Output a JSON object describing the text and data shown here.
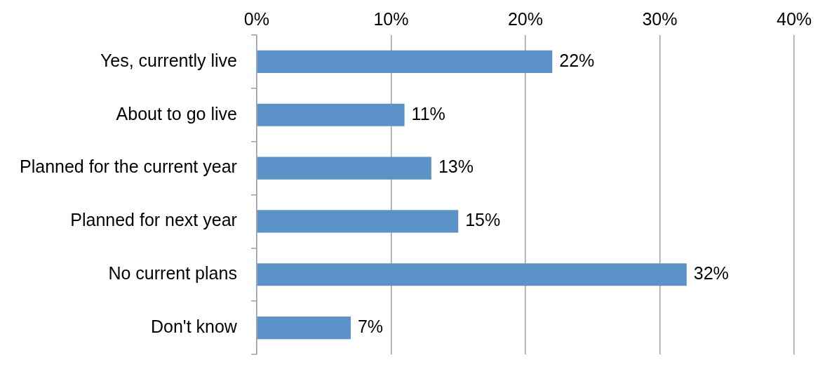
{
  "chart_data": {
    "type": "bar",
    "orientation": "horizontal",
    "categories": [
      "Yes, currently live",
      "About to go live",
      "Planned for the current year",
      "Planned for next year",
      "No current plans",
      "Don't know"
    ],
    "values": [
      22,
      11,
      13,
      15,
      32,
      7
    ],
    "value_labels": [
      "22%",
      "11%",
      "13%",
      "15%",
      "32%",
      "7%"
    ],
    "color": "#5b93c9",
    "xlim": [
      0,
      40
    ],
    "xticks": [
      {
        "value": 0,
        "label": "0%"
      },
      {
        "value": 10,
        "label": "10%"
      },
      {
        "value": 20,
        "label": "20%"
      },
      {
        "value": 30,
        "label": "30%"
      },
      {
        "value": 40,
        "label": "40%"
      }
    ],
    "grid": "x"
  }
}
